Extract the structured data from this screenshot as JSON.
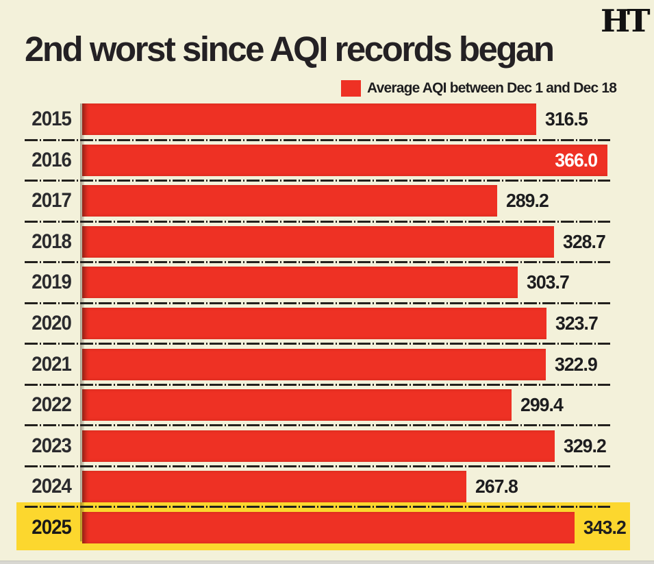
{
  "brand": {
    "logo_text": "HT"
  },
  "header": {
    "title": "2nd worst since AQI records began"
  },
  "legend": {
    "label": "Average AQI between Dec 1 and Dec 18",
    "swatch_color": "#ee3124"
  },
  "colors": {
    "background": "#f3f1da",
    "bar": "#ee3124",
    "highlight_band": "#fcd72e",
    "text_dark": "#1d1d1f",
    "value_inside_bar": "#ffffff"
  },
  "chart_data": {
    "type": "bar",
    "orientation": "horizontal",
    "title": "2nd worst since AQI records began",
    "legend_entry": "Average AQI between Dec 1 and Dec 18",
    "categories": [
      "2015",
      "2016",
      "2017",
      "2018",
      "2019",
      "2020",
      "2021",
      "2022",
      "2023",
      "2024",
      "2025"
    ],
    "values": [
      316.5,
      366.0,
      289.2,
      328.7,
      303.7,
      323.7,
      322.9,
      299.4,
      329.2,
      267.8,
      343.2
    ],
    "value_labels": [
      "316.5",
      "366.0",
      "289.2",
      "328.7",
      "303.7",
      "323.7",
      "322.9",
      "299.4",
      "329.2",
      "267.8",
      "343.2"
    ],
    "xlim": [
      0,
      366
    ],
    "grid": "off",
    "separators": "dashed lines between rows",
    "highlighted_category": "2025",
    "labels_inside_bar": [
      "2016"
    ],
    "legend_position": "top-right above chart"
  }
}
